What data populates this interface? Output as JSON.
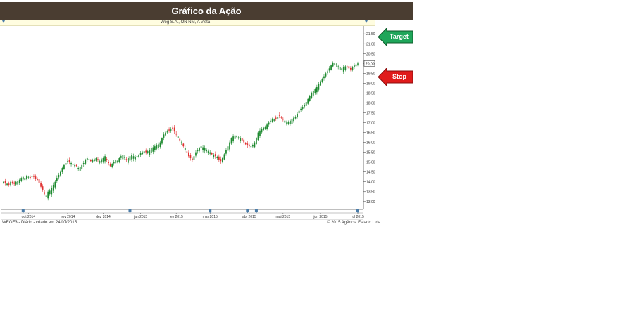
{
  "title": "Gráfico da Ação",
  "info_strip": {
    "text": "Weg S.A., ON      NM, A Vista"
  },
  "callouts": {
    "target": {
      "label": "Target",
      "color": "#1fa65a"
    },
    "stop": {
      "label": "Stop",
      "color": "#e01b1b"
    }
  },
  "footer": {
    "left": "WEGE3 - Diário - criado em 24/07/2015",
    "right": "© 2015 Agência Estado Ltda"
  },
  "colors": {
    "up": "#1e8a30",
    "down": "#e03030",
    "title_bg": "#4a3d31"
  },
  "chart_data": {
    "type": "candlestick",
    "ticker": "WEGE3",
    "interval": "Diário",
    "y_ticks": [
      "21,50",
      "21,00",
      "20,50",
      "20,00",
      "19,50",
      "19,00",
      "18,50",
      "18,00",
      "17,50",
      "17,00",
      "16,50",
      "16,00",
      "15,50",
      "15,00",
      "14,50",
      "14,00",
      "13,50",
      "13,00"
    ],
    "y_tick_values": [
      21.5,
      21.0,
      20.5,
      20.0,
      19.5,
      19.0,
      18.5,
      18.0,
      17.5,
      17.0,
      16.5,
      16.0,
      15.5,
      15.0,
      14.5,
      14.0,
      13.5,
      13.0
    ],
    "ylim": [
      12.6,
      21.9
    ],
    "last_price_label": "20,00",
    "last_price": 20.0,
    "x_ticks": [
      {
        "label": "out 2014",
        "index": 14
      },
      {
        "label": "nov 2014",
        "index": 36
      },
      {
        "label": "dez 2014",
        "index": 56
      },
      {
        "label": "jan 2015",
        "index": 77
      },
      {
        "label": "fev 2015",
        "index": 97
      },
      {
        "label": "mar 2015",
        "index": 116
      },
      {
        "label": "abr 2015",
        "index": 138
      },
      {
        "label": "mai 2015",
        "index": 157
      },
      {
        "label": "jun 2015",
        "index": 178
      },
      {
        "label": "jul 2015",
        "index": 199
      }
    ],
    "event_marker_indices": [
      11,
      71,
      116,
      137,
      142,
      199
    ],
    "closes": [
      14.0,
      13.95,
      13.9,
      13.85,
      14.0,
      13.95,
      13.9,
      14.0,
      14.05,
      14.1,
      14.2,
      14.25,
      14.2,
      14.3,
      14.25,
      14.2,
      14.3,
      14.25,
      14.15,
      14.1,
      13.95,
      13.75,
      13.6,
      13.4,
      13.3,
      13.5,
      13.55,
      13.7,
      13.85,
      14.0,
      14.2,
      14.35,
      14.5,
      14.7,
      14.85,
      14.95,
      15.05,
      15.0,
      14.95,
      14.9,
      14.85,
      14.8,
      14.7,
      14.75,
      14.85,
      14.95,
      15.1,
      15.2,
      15.15,
      15.05,
      15.1,
      15.15,
      15.2,
      15.1,
      15.05,
      15.15,
      15.2,
      15.3,
      15.1,
      14.95,
      14.8,
      14.9,
      15.0,
      15.1,
      15.05,
      15.2,
      15.3,
      15.35,
      15.25,
      15.1,
      15.2,
      15.3,
      15.35,
      15.3,
      15.25,
      15.3,
      15.35,
      15.45,
      15.5,
      15.55,
      15.5,
      15.55,
      15.6,
      15.7,
      15.75,
      15.8,
      15.85,
      15.9,
      16.0,
      16.2,
      16.4,
      16.5,
      16.55,
      16.6,
      16.65,
      16.7,
      16.55,
      16.4,
      16.3,
      16.1,
      16.0,
      15.8,
      15.7,
      15.5,
      15.3,
      15.2,
      15.1,
      15.3,
      15.5,
      15.6,
      15.7,
      15.8,
      15.75,
      15.7,
      15.6,
      15.55,
      15.5,
      15.4,
      15.35,
      15.3,
      15.25,
      15.1,
      15.05,
      15.2,
      15.4,
      15.6,
      15.8,
      16.0,
      16.2,
      16.3,
      16.35,
      16.3,
      16.25,
      16.2,
      16.1,
      16.0,
      15.9,
      15.85,
      15.8,
      15.8,
      15.85,
      16.0,
      16.2,
      16.5,
      16.6,
      16.7,
      16.75,
      16.8,
      16.9,
      17.0,
      17.1,
      17.2,
      17.15,
      17.2,
      17.3,
      17.35,
      17.25,
      17.15,
      17.1,
      17.0,
      17.05,
      17.1,
      17.2,
      17.25,
      17.3,
      17.45,
      17.6,
      17.7,
      17.8,
      17.9,
      18.05,
      18.2,
      18.35,
      18.5,
      18.6,
      18.7,
      18.8,
      18.95,
      19.1,
      19.2,
      19.35,
      19.5,
      19.6,
      19.75,
      19.9,
      20.05,
      20.0,
      19.95,
      19.85,
      19.8,
      19.75,
      19.8,
      19.85,
      19.8,
      19.75,
      19.7,
      19.8,
      19.9,
      19.95,
      20.0
    ]
  }
}
